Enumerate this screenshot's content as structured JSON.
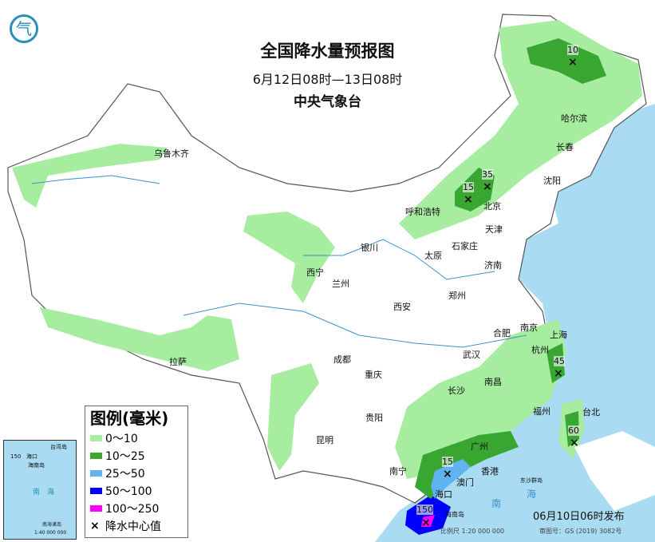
{
  "header": {
    "title": "全国降水量预报图",
    "period": "6月12日08时—13日08时",
    "issuer": "中央气象台"
  },
  "logo": {
    "icon": "cma-logo-icon"
  },
  "colors": {
    "sea": "#a9dcf2",
    "light_green": "#a6eda0",
    "green": "#3aa632",
    "light_blue": "#5fb3f0",
    "blue": "#0000ff",
    "magenta": "#ff00ff"
  },
  "cities": [
    {
      "name": "乌鲁木齐"
    },
    {
      "name": "哈尔滨"
    },
    {
      "name": "长春"
    },
    {
      "name": "沈阳"
    },
    {
      "name": "呼和浩特"
    },
    {
      "name": "北京"
    },
    {
      "name": "天津"
    },
    {
      "name": "银川"
    },
    {
      "name": "太原"
    },
    {
      "name": "石家庄"
    },
    {
      "name": "济南"
    },
    {
      "name": "西宁"
    },
    {
      "name": "兰州"
    },
    {
      "name": "郑州"
    },
    {
      "name": "西安"
    },
    {
      "name": "合肥"
    },
    {
      "name": "南京"
    },
    {
      "name": "上海"
    },
    {
      "name": "杭州"
    },
    {
      "name": "拉萨"
    },
    {
      "name": "成都"
    },
    {
      "name": "武汉"
    },
    {
      "name": "重庆"
    },
    {
      "name": "南昌"
    },
    {
      "name": "长沙"
    },
    {
      "name": "福州"
    },
    {
      "name": "台北"
    },
    {
      "name": "贵阳"
    },
    {
      "name": "昆明"
    },
    {
      "name": "广州"
    },
    {
      "name": "南宁"
    },
    {
      "name": "澳门"
    },
    {
      "name": "香港"
    },
    {
      "name": "海口"
    }
  ],
  "rain_centers": [
    {
      "value": "10"
    },
    {
      "value": "35"
    },
    {
      "value": "15"
    },
    {
      "value": "45"
    },
    {
      "value": "60"
    },
    {
      "value": "15"
    },
    {
      "value": "150"
    }
  ],
  "sea_labels": {
    "south_sea": "南",
    "south_sea2": "海",
    "hainan": "海南岛",
    "dongsha": "东沙群岛"
  },
  "legend": {
    "title": "图例(毫米)",
    "items": [
      {
        "label": "0～10",
        "color": "#a6eda0"
      },
      {
        "label": "10～25",
        "color": "#3aa632"
      },
      {
        "label": "25～50",
        "color": "#5fb3f0"
      },
      {
        "label": "50～100",
        "color": "#0000ff"
      },
      {
        "label": "100～250",
        "color": "#ff00ff"
      }
    ],
    "center_label": "降水中心值",
    "center_symbol": "×"
  },
  "inset": {
    "haikou": "海口",
    "hainan": "海南岛",
    "taiwan": "台湾岛",
    "south_sea": "南　海",
    "islands": "南海诸岛",
    "scale": "1:40 000 000",
    "value": "150"
  },
  "footer": {
    "published": "06月10日06时发布",
    "scale": "比例尺 1:20 000 000",
    "map_no": "审图号：GS (2019) 3082号"
  }
}
